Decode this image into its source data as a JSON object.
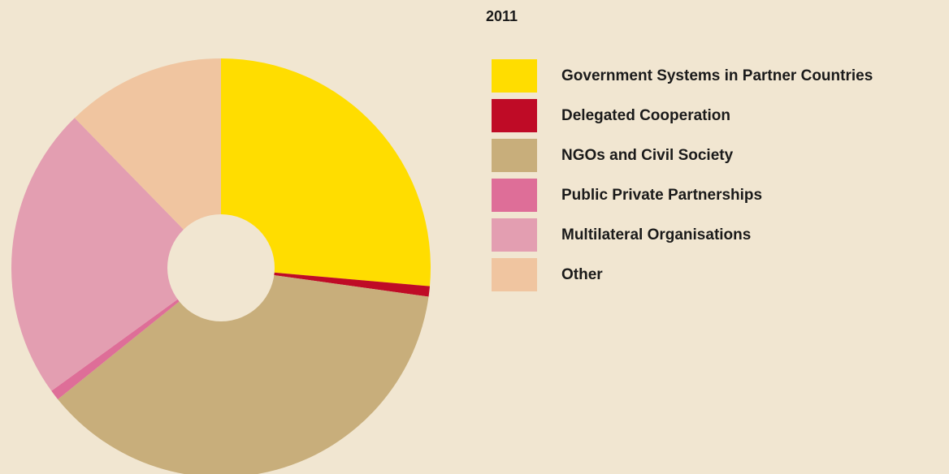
{
  "chart_data": {
    "type": "pie",
    "title": "2011",
    "hole": true,
    "legend_position": "right",
    "slices": [
      {
        "label": "Government Systems in Partner Countries",
        "value": 26.4,
        "color": "#FFDD00"
      },
      {
        "label": "Delegated Cooperation",
        "value": 0.8,
        "color": "#BF0B26"
      },
      {
        "label": "NGOs and Civil Society",
        "value": 37.0,
        "color": "#C8AE7B"
      },
      {
        "label": "Public Private Partnerships",
        "value": 0.8,
        "color": "#DE6E98"
      },
      {
        "label": "Multilateral Organisations",
        "value": 22.7,
        "color": "#E39EB1"
      },
      {
        "label": "Other",
        "value": 12.3,
        "color": "#F0C5A0"
      }
    ]
  }
}
